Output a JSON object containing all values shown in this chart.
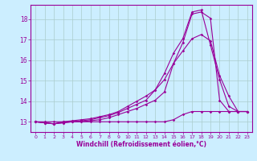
{
  "xlabel": "Windchill (Refroidissement éolien,°C)",
  "bg_color": "#cceeff",
  "line_color": "#990099",
  "grid_color": "#aacccc",
  "xlim": [
    -0.5,
    23.5
  ],
  "ylim": [
    12.5,
    18.7
  ],
  "yticks": [
    13,
    14,
    15,
    16,
    17,
    18
  ],
  "xticks": [
    0,
    1,
    2,
    3,
    4,
    5,
    6,
    7,
    8,
    9,
    10,
    11,
    12,
    13,
    14,
    15,
    16,
    17,
    18,
    19,
    20,
    21,
    22,
    23
  ],
  "series": [
    {
      "x": [
        0,
        1,
        2,
        3,
        4,
        5,
        6,
        7,
        8,
        9,
        10,
        11,
        12,
        13,
        14,
        15,
        16,
        17,
        18,
        19,
        20,
        21,
        22,
        23
      ],
      "y": [
        13.0,
        12.95,
        12.9,
        12.95,
        13.0,
        13.0,
        13.05,
        13.1,
        13.2,
        13.35,
        13.5,
        13.65,
        13.85,
        14.05,
        14.45,
        15.85,
        16.85,
        18.25,
        18.35,
        18.05,
        14.05,
        13.5,
        13.5,
        13.5
      ]
    },
    {
      "x": [
        0,
        1,
        2,
        3,
        4,
        5,
        6,
        7,
        8,
        9,
        10,
        11,
        12,
        13,
        14,
        15,
        16,
        17,
        18,
        19,
        20,
        21,
        22,
        23
      ],
      "y": [
        13.0,
        12.95,
        12.9,
        12.95,
        13.0,
        13.05,
        13.1,
        13.2,
        13.3,
        13.45,
        13.65,
        13.85,
        14.05,
        14.55,
        15.35,
        16.35,
        17.05,
        18.35,
        18.45,
        16.75,
        15.05,
        13.75,
        13.5,
        13.5
      ]
    },
    {
      "x": [
        0,
        1,
        2,
        3,
        4,
        5,
        6,
        7,
        8,
        9,
        10,
        11,
        12,
        13,
        14,
        15,
        16,
        17,
        18,
        19,
        20,
        21,
        22,
        23
      ],
      "y": [
        13.0,
        12.95,
        12.9,
        13.0,
        13.05,
        13.1,
        13.15,
        13.25,
        13.35,
        13.5,
        13.75,
        14.0,
        14.25,
        14.55,
        15.05,
        15.85,
        16.45,
        17.05,
        17.25,
        16.95,
        15.25,
        14.25,
        13.5,
        13.5
      ]
    },
    {
      "x": [
        0,
        1,
        2,
        3,
        4,
        5,
        6,
        7,
        8,
        9,
        10,
        11,
        12,
        13,
        14,
        15,
        16,
        17,
        18,
        19,
        20,
        21,
        22,
        23
      ],
      "y": [
        13.0,
        13.0,
        13.0,
        13.0,
        13.0,
        13.0,
        13.0,
        13.0,
        13.0,
        13.0,
        13.0,
        13.0,
        13.0,
        13.0,
        13.0,
        13.1,
        13.35,
        13.5,
        13.5,
        13.5,
        13.5,
        13.5,
        13.5,
        13.5
      ]
    }
  ]
}
